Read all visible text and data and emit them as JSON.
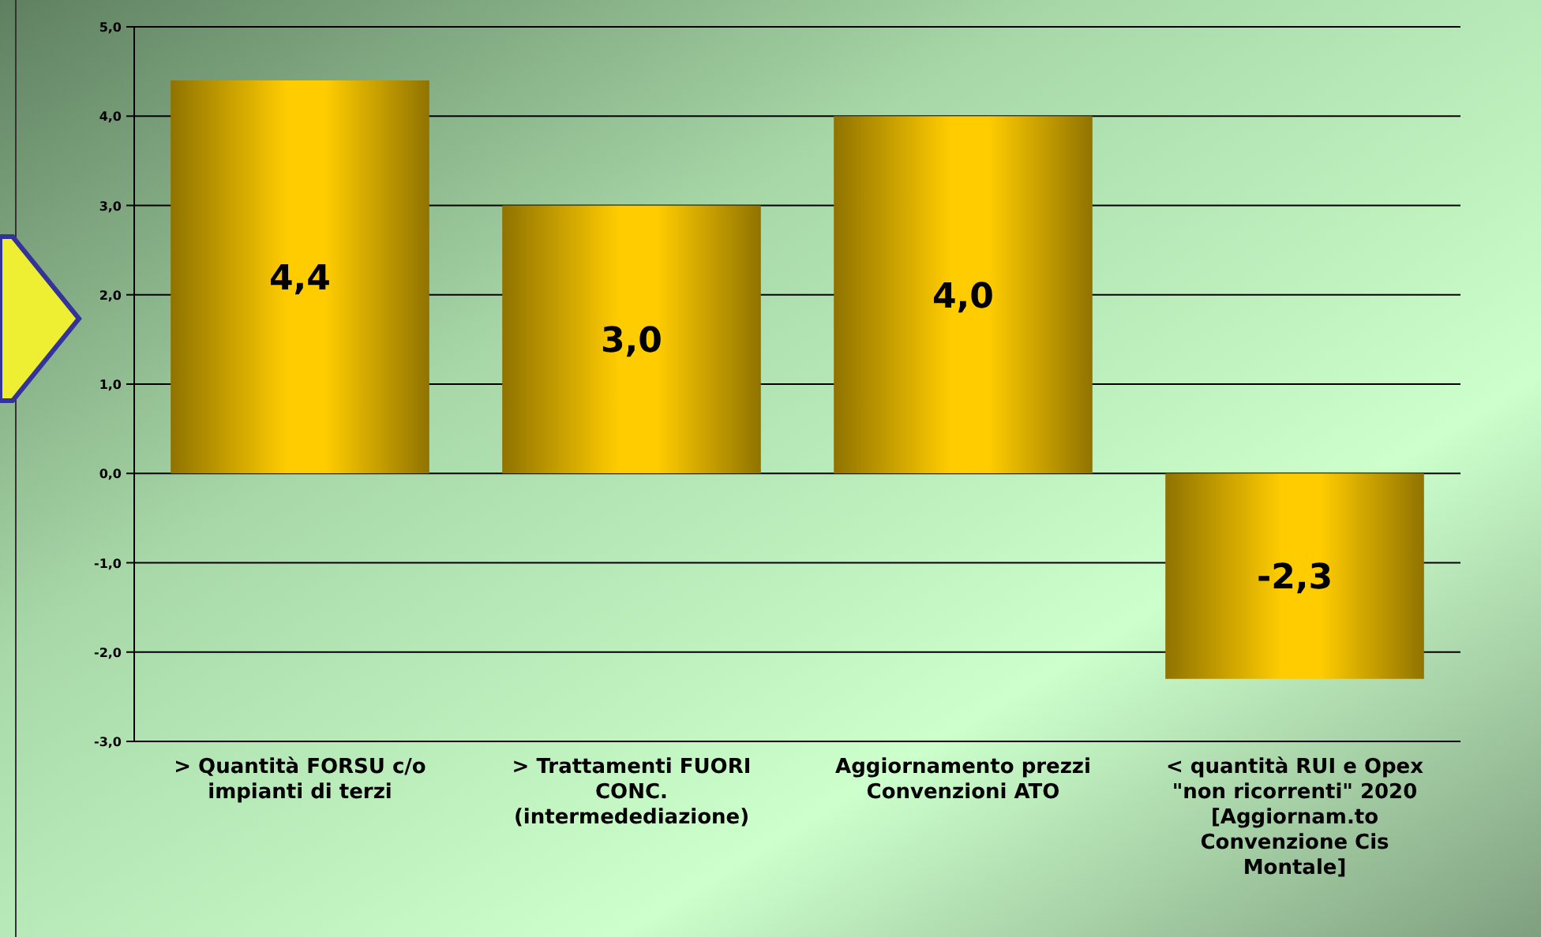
{
  "chart_data": {
    "type": "bar",
    "categories": [
      "> Quantità FORSU c/o impianti di terzi",
      "> Trattamenti FUORI CONC. (intermedediazione)",
      "Aggiornamento prezzi Convenzioni ATO",
      "< quantità RUI e Opex \"non ricorrenti\" 2020 [Aggiornam.to Convenzione Cis Montale]"
    ],
    "values": [
      4.4,
      3.0,
      4.0,
      -2.3
    ],
    "value_labels": [
      "4,4",
      "3,0",
      "4,0",
      "-2,3"
    ],
    "color": "#ffcc00",
    "ylim": [
      -3,
      5
    ],
    "yticks": [
      {
        "value": -3,
        "label": "-3,0"
      },
      {
        "value": -2,
        "label": "-2,0"
      },
      {
        "value": -1,
        "label": "-1,0"
      },
      {
        "value": 0,
        "label": "0,0"
      },
      {
        "value": 1,
        "label": "1,0"
      },
      {
        "value": 2,
        "label": "2,0"
      },
      {
        "value": 3,
        "label": "3,0"
      },
      {
        "value": 4,
        "label": "4,0"
      },
      {
        "value": 5,
        "label": "5,0"
      }
    ],
    "grid": "y"
  }
}
